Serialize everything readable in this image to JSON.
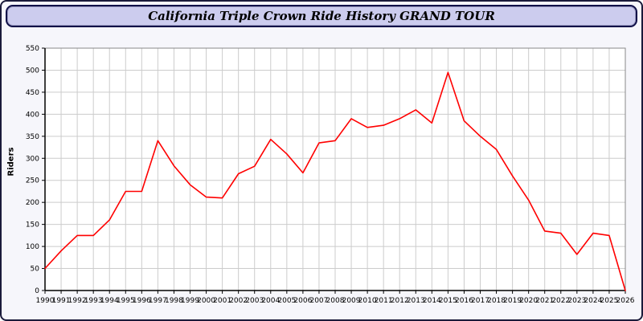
{
  "header": {
    "title": "California Triple Crown Ride History GRAND TOUR"
  },
  "chart_data": {
    "type": "line",
    "title": "California Triple Crown Ride History GRAND TOUR",
    "x": [
      1990,
      1991,
      1992,
      1993,
      1994,
      1995,
      1996,
      1997,
      1998,
      1999,
      2000,
      2001,
      2002,
      2003,
      2004,
      2005,
      2006,
      2007,
      2008,
      2009,
      2010,
      2011,
      2012,
      2013,
      2014,
      2015,
      2016,
      2017,
      2018,
      2019,
      2020,
      2021,
      2022,
      2023,
      2024,
      2025,
      2026
    ],
    "series": [
      {
        "name": "Riders",
        "color": "#ff0000",
        "values": [
          50,
          90,
          125,
          125,
          160,
          225,
          225,
          340,
          283,
          240,
          212,
          210,
          265,
          282,
          343,
          310,
          267,
          335,
          340,
          390,
          370,
          375,
          390,
          410,
          380,
          495,
          385,
          350,
          320,
          260,
          205,
          135,
          130,
          82,
          130,
          125,
          0
        ]
      }
    ],
    "xlabel": "",
    "ylabel": "Riders",
    "ylim": [
      0,
      550
    ],
    "ytick_step": 50,
    "grid": true,
    "legend": "none"
  },
  "colors": {
    "page_bg": "#f6f6fb",
    "title_bar_bg": "#ccccee",
    "title_bar_border": "#101048",
    "plot_bg": "#ffffff",
    "grid": "#cccccc",
    "frame": "#888888",
    "axis": "#000000",
    "tick_label": "#000000",
    "line": "#ff0000"
  }
}
